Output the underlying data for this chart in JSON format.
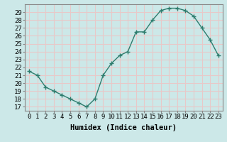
{
  "x": [
    0,
    1,
    2,
    3,
    4,
    5,
    6,
    7,
    8,
    9,
    10,
    11,
    12,
    13,
    14,
    15,
    16,
    17,
    18,
    19,
    20,
    21,
    22,
    23
  ],
  "y": [
    21.5,
    21.0,
    19.5,
    19.0,
    18.5,
    18.0,
    17.5,
    17.0,
    18.0,
    21.0,
    22.5,
    23.5,
    24.0,
    26.5,
    26.5,
    28.0,
    29.2,
    29.5,
    29.5,
    29.2,
    28.5,
    27.0,
    25.5,
    23.5
  ],
  "line_color": "#2e7d6e",
  "marker": "+",
  "marker_size": 4,
  "bg_color": "#cce8e8",
  "grid_color": "#e8c8c8",
  "xlabel": "Humidex (Indice chaleur)",
  "ylabel_ticks": [
    17,
    18,
    19,
    20,
    21,
    22,
    23,
    24,
    25,
    26,
    27,
    28,
    29
  ],
  "ylim": [
    16.5,
    30.0
  ],
  "xlim": [
    -0.5,
    23.5
  ],
  "xlabel_fontsize": 7.5,
  "tick_fontsize": 6.5,
  "spine_color": "#888888",
  "line_width": 1.0,
  "marker_color": "#2e7d6e"
}
